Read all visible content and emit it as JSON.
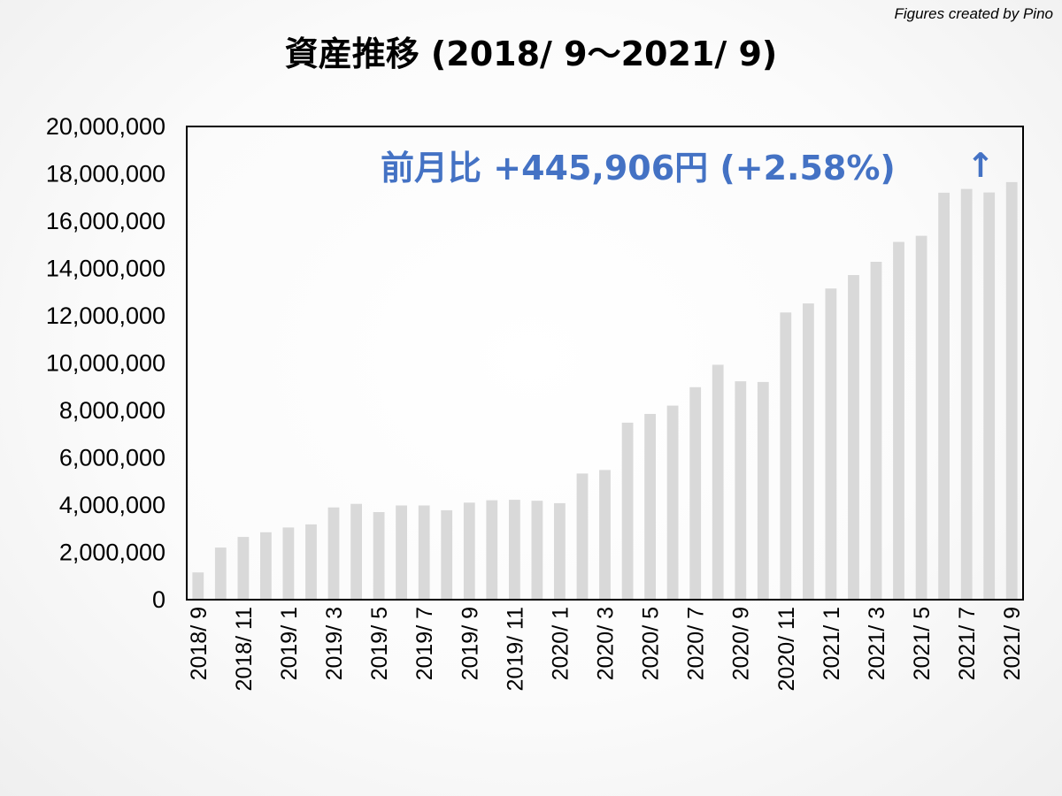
{
  "credit": "Figures created by Pino",
  "colors": {
    "bar": "#d9d9d9",
    "annotation": "#4472c4",
    "frame": "#000000"
  },
  "chart_data": {
    "type": "bar",
    "title": "資産推移 (2018/ 9～2021/ 9)",
    "xlabel": "",
    "ylabel": "",
    "ylim": [
      0,
      20000000
    ],
    "y_ticks": [
      0,
      2000000,
      4000000,
      6000000,
      8000000,
      10000000,
      12000000,
      14000000,
      16000000,
      18000000,
      20000000
    ],
    "y_tick_labels": [
      "0",
      "2,000,000",
      "4,000,000",
      "6,000,000",
      "8,000,000",
      "10,000,000",
      "12,000,000",
      "14,000,000",
      "16,000,000",
      "18,000,000",
      "20,000,000"
    ],
    "grid": false,
    "categories": [
      "2018/ 9",
      "2018/ 10",
      "2018/ 11",
      "2018/ 12",
      "2019/ 1",
      "2019/ 2",
      "2019/ 3",
      "2019/ 4",
      "2019/ 5",
      "2019/ 6",
      "2019/ 7",
      "2019/ 8",
      "2019/ 9",
      "2019/ 10",
      "2019/ 11",
      "2019/ 12",
      "2020/ 1",
      "2020/ 2",
      "2020/ 3",
      "2020/ 4",
      "2020/ 5",
      "2020/ 6",
      "2020/ 7",
      "2020/ 8",
      "2020/ 9",
      "2020/ 10",
      "2020/ 11",
      "2020/ 12",
      "2021/ 1",
      "2021/ 2",
      "2021/ 3",
      "2021/ 4",
      "2021/ 5",
      "2021/ 6",
      "2021/ 7",
      "2021/ 8",
      "2021/ 9"
    ],
    "visible_x_labels": [
      "2018/ 9",
      "2018/ 11",
      "2019/ 1",
      "2019/ 3",
      "2019/ 5",
      "2019/ 7",
      "2019/ 9",
      "2019/ 11",
      "2020/ 1",
      "2020/ 3",
      "2020/ 5",
      "2020/ 7",
      "2020/ 9",
      "2020/ 11",
      "2021/ 1",
      "2021/ 3",
      "2021/ 5",
      "2021/ 7",
      "2021/ 9"
    ],
    "values": [
      1150000,
      2200000,
      2650000,
      2850000,
      3050000,
      3180000,
      3900000,
      4050000,
      3700000,
      3980000,
      3980000,
      3780000,
      4100000,
      4200000,
      4220000,
      4180000,
      4080000,
      5330000,
      5480000,
      7480000,
      7850000,
      8200000,
      8980000,
      9930000,
      9230000,
      9200000,
      12140000,
      12520000,
      13150000,
      13720000,
      14280000,
      15120000,
      15380000,
      17200000,
      17360000,
      17210000,
      17650000
    ],
    "annotation": {
      "text": "前月比 +445,906円 (+2.58%)",
      "arrow": "↑"
    }
  }
}
